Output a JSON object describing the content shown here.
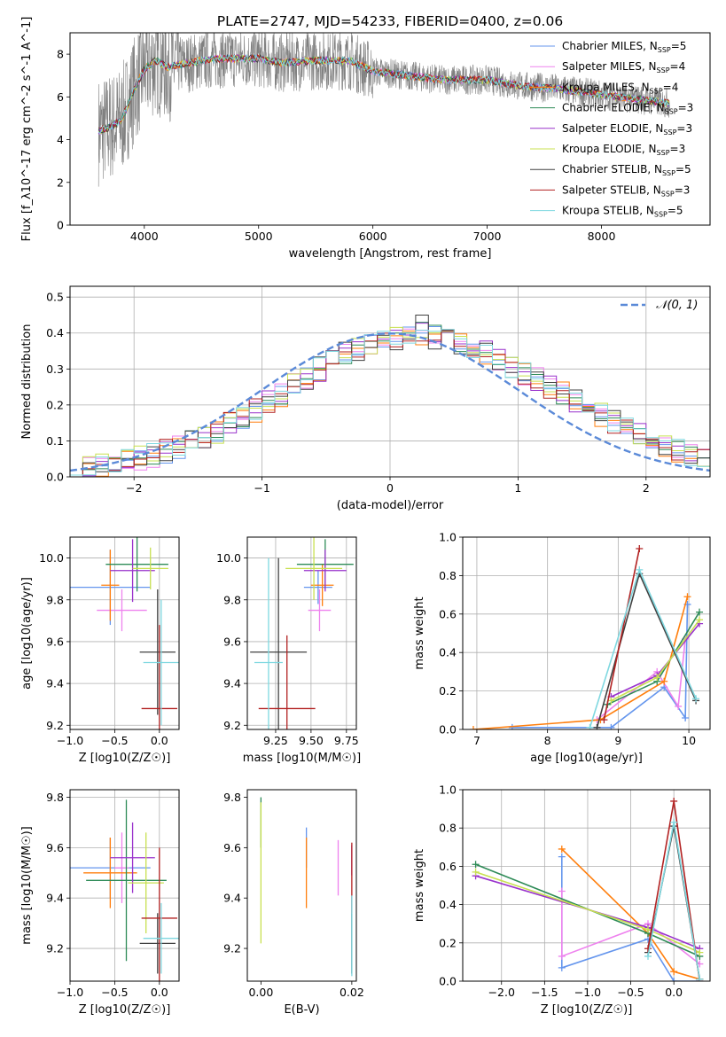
{
  "figure": {
    "title": "PLATE=2747, MJD=54233, FIBERID=0400, z=0.06"
  },
  "legend_spectrum": [
    {
      "label": "Chabrier MILES, N",
      "sub": "SSP",
      "tail": "=5",
      "color": "#6495ed"
    },
    {
      "label": "Salpeter MILES, N",
      "sub": "SSP",
      "tail": "=4",
      "color": "#ee82ee"
    },
    {
      "label": "Kroupa MILES, N",
      "sub": "SSP",
      "tail": "=4",
      "color": "#ff7f0e"
    },
    {
      "label": "Chabrier ELODIE, N",
      "sub": "SSP",
      "tail": "=3",
      "color": "#2e8b57"
    },
    {
      "label": "Salpeter ELODIE, N",
      "sub": "SSP",
      "tail": "=3",
      "color": "#9932cc"
    },
    {
      "label": "Kroupa ELODIE, N",
      "sub": "SSP",
      "tail": "=3",
      "color": "#c8e050"
    },
    {
      "label": "Chabrier STELIB, N",
      "sub": "SSP",
      "tail": "=5",
      "color": "#404040"
    },
    {
      "label": "Salpeter STELIB, N",
      "sub": "SSP",
      "tail": "=3",
      "color": "#b22222"
    },
    {
      "label": "Kroupa STELIB, N",
      "sub": "SSP",
      "tail": "=5",
      "color": "#7fd8e0"
    }
  ],
  "chart_data": [
    {
      "id": "spectrum",
      "type": "line",
      "xlabel": "wavelength [Angstrom, rest frame]",
      "ylabel": "Flux [f_λ10^-17 erg cm^-2 s^-1 A^-1]",
      "xlim": [
        3350,
        8950
      ],
      "ylim": [
        0,
        9
      ],
      "xticks": [
        4000,
        5000,
        6000,
        7000,
        8000
      ],
      "yticks": [
        0,
        2,
        4,
        6,
        8
      ],
      "grid": false,
      "legend_position": "right",
      "data_color": "#808080",
      "data_range": [
        3600,
        8600
      ],
      "model_shape": [
        [
          3600,
          4.4
        ],
        [
          3700,
          4.6
        ],
        [
          3800,
          4.9
        ],
        [
          3900,
          6.2
        ],
        [
          4000,
          7.3
        ],
        [
          4100,
          7.7
        ],
        [
          4200,
          7.4
        ],
        [
          4300,
          7.5
        ],
        [
          4500,
          7.7
        ],
        [
          4700,
          7.8
        ],
        [
          5000,
          7.8
        ],
        [
          5200,
          7.6
        ],
        [
          5500,
          7.7
        ],
        [
          5800,
          7.7
        ],
        [
          6000,
          7.2
        ],
        [
          6300,
          7.0
        ],
        [
          6600,
          6.8
        ],
        [
          7000,
          6.8
        ],
        [
          7300,
          6.5
        ],
        [
          7600,
          6.4
        ],
        [
          8000,
          6.1
        ],
        [
          8300,
          5.9
        ],
        [
          8600,
          5.7
        ]
      ]
    },
    {
      "id": "residual-distribution",
      "type": "line",
      "xlabel": "(data-model)/error",
      "ylabel": "Normed distribution",
      "xlim": [
        -2.5,
        2.5
      ],
      "ylim": [
        0,
        0.53
      ],
      "xticks": [
        -2,
        -1,
        0,
        1,
        2
      ],
      "yticks": [
        0.0,
        0.1,
        0.2,
        0.3,
        0.4,
        0.5
      ],
      "grid": true,
      "legend_label": "𝒩(0, 1)",
      "legend_position": "top-right",
      "normal_color": "#5b8ad8",
      "bin_width": 0.1,
      "series_base": [
        0.028,
        0.03,
        0.036,
        0.04,
        0.045,
        0.052,
        0.06,
        0.07,
        0.082,
        0.095,
        0.11,
        0.127,
        0.145,
        0.165,
        0.185,
        0.208,
        0.23,
        0.253,
        0.276,
        0.3,
        0.32,
        0.34,
        0.356,
        0.37,
        0.38,
        0.388,
        0.392,
        0.393,
        0.39,
        0.385,
        0.375,
        0.36,
        0.345,
        0.327,
        0.31,
        0.29,
        0.27,
        0.25,
        0.23,
        0.21,
        0.19,
        0.17,
        0.15,
        0.131,
        0.114,
        0.098,
        0.084,
        0.072,
        0.061,
        0.051
      ],
      "series_peaks": [
        0.32,
        0.33,
        0.34,
        0.35,
        0.37,
        0.41,
        0.37,
        0.39,
        0.38,
        0.4,
        0.4,
        0.39,
        0.36,
        0.34,
        0.35,
        0.38,
        0.45,
        0.36,
        0.34,
        0.33,
        0.31,
        0.32,
        0.36,
        0.33,
        0.31,
        0.3,
        0.29
      ]
    },
    {
      "id": "age-vs-z",
      "type": "scatter",
      "xlabel": "Z [log10(Z/Z☉)]",
      "ylabel": "age  [log10(age/yr)]",
      "xlim": [
        -1.0,
        0.22
      ],
      "ylim": [
        9.18,
        10.1
      ],
      "xticks": [
        -1.0,
        -0.5,
        0.0
      ],
      "yticks": [
        9.2,
        9.4,
        9.6,
        9.8,
        10.0
      ],
      "grid": true,
      "points": [
        {
          "series": 0,
          "x": -0.55,
          "y": 9.86,
          "xerr": 0.45,
          "yerr": 0.18
        },
        {
          "series": 1,
          "x": -0.42,
          "y": 9.75,
          "xerr": 0.28,
          "yerr": 0.1
        },
        {
          "series": 2,
          "x": -0.55,
          "y": 9.87,
          "xerr": 0.1,
          "yerr": 0.17
        },
        {
          "series": 3,
          "x": -0.25,
          "y": 9.97,
          "xerr": 0.35,
          "yerr": 0.13
        },
        {
          "series": 4,
          "x": -0.3,
          "y": 9.94,
          "xerr": 0.25,
          "yerr": 0.15
        },
        {
          "series": 5,
          "x": -0.1,
          "y": 9.95,
          "xerr": 0.2,
          "yerr": 0.1
        },
        {
          "series": 6,
          "x": -0.02,
          "y": 9.55,
          "xerr": 0.2,
          "yerr": 0.3
        },
        {
          "series": 7,
          "x": 0.0,
          "y": 9.28,
          "xerr": 0.2,
          "yerr": 0.4
        },
        {
          "series": 8,
          "x": 0.02,
          "y": 9.5,
          "xerr": 0.2,
          "yerr": 0.3
        }
      ]
    },
    {
      "id": "age-vs-mass",
      "type": "scatter",
      "xlabel": "mass [log10(M/M☉)]",
      "ylabel": "",
      "xlim": [
        9.05,
        9.82
      ],
      "ylim": [
        9.18,
        10.1
      ],
      "xticks": [
        9.25,
        9.5,
        9.75
      ],
      "yticks": [
        9.2,
        9.4,
        9.6,
        9.8,
        10.0
      ],
      "grid": true,
      "points": [
        {
          "series": 0,
          "x": 9.55,
          "y": 9.86,
          "xerr": 0.1,
          "yerr": 0.08
        },
        {
          "series": 1,
          "x": 9.56,
          "y": 9.75,
          "xerr": 0.08,
          "yerr": 0.1
        },
        {
          "series": 2,
          "x": 9.58,
          "y": 9.87,
          "xerr": 0.08,
          "yerr": 0.1
        },
        {
          "series": 3,
          "x": 9.6,
          "y": 9.97,
          "xerr": 0.2,
          "yerr": 0.12
        },
        {
          "series": 4,
          "x": 9.6,
          "y": 9.94,
          "xerr": 0.15,
          "yerr": 0.1
        },
        {
          "series": 5,
          "x": 9.52,
          "y": 9.95,
          "xerr": 0.2,
          "yerr": 0.15
        },
        {
          "series": 6,
          "x": 9.27,
          "y": 9.55,
          "xerr": 0.2,
          "yerr": 0.45
        },
        {
          "series": 7,
          "x": 9.33,
          "y": 9.28,
          "xerr": 0.2,
          "yerr": 0.35
        },
        {
          "series": 8,
          "x": 9.2,
          "y": 9.5,
          "xerr": 0.1,
          "yerr": 0.5
        }
      ]
    },
    {
      "id": "mass-weight-vs-age",
      "type": "line",
      "xlabel": "age  [log10(age/yr)]",
      "ylabel": "mass weight",
      "xlim": [
        6.8,
        10.3
      ],
      "ylim": [
        0,
        1.0
      ],
      "xticks": [
        7,
        8,
        9,
        10
      ],
      "yticks": [
        0.0,
        0.2,
        0.4,
        0.6,
        0.8,
        1.0
      ],
      "grid": true,
      "series": [
        {
          "x": [
            7.5,
            8.9,
            9.65,
            9.95,
            9.98
          ],
          "y": [
            0.01,
            0.01,
            0.22,
            0.06,
            0.65
          ]
        },
        {
          "x": [
            8.7,
            9.55,
            9.85,
            9.95
          ],
          "y": [
            0.05,
            0.3,
            0.12,
            0.47
          ]
        },
        {
          "x": [
            6.95,
            8.75,
            9.65,
            9.98
          ],
          "y": [
            0.0,
            0.05,
            0.25,
            0.69
          ]
        },
        {
          "x": [
            8.85,
            9.55,
            10.15
          ],
          "y": [
            0.13,
            0.25,
            0.61
          ]
        },
        {
          "x": [
            8.9,
            9.55,
            10.15
          ],
          "y": [
            0.17,
            0.28,
            0.55
          ]
        },
        {
          "x": [
            8.9,
            9.55,
            10.15
          ],
          "y": [
            0.15,
            0.27,
            0.57
          ]
        },
        {
          "x": [
            8.7,
            9.3,
            10.1
          ],
          "y": [
            0.01,
            0.81,
            0.15
          ]
        },
        {
          "x": [
            8.8,
            9.3
          ],
          "y": [
            0.05,
            0.94
          ]
        },
        {
          "x": [
            8.6,
            9.3,
            10.1
          ],
          "y": [
            0.01,
            0.83,
            0.16
          ]
        }
      ]
    },
    {
      "id": "mass-vs-z",
      "type": "scatter",
      "xlabel": "Z [log10(Z/Z☉)]",
      "ylabel": "mass [log10(M/M☉)]",
      "xlim": [
        -1.0,
        0.22
      ],
      "ylim": [
        9.07,
        9.83
      ],
      "xticks": [
        -1.0,
        -0.5,
        0.0
      ],
      "yticks": [
        9.2,
        9.4,
        9.6,
        9.8
      ],
      "grid": true,
      "points": [
        {
          "series": 0,
          "x": -0.55,
          "y": 9.52,
          "xerr": 0.45,
          "yerr": 0.12
        },
        {
          "series": 1,
          "x": -0.42,
          "y": 9.52,
          "xerr": 0.08,
          "yerr": 0.14
        },
        {
          "series": 2,
          "x": -0.55,
          "y": 9.5,
          "xerr": 0.3,
          "yerr": 0.14
        },
        {
          "series": 3,
          "x": -0.37,
          "y": 9.47,
          "xerr": 0.45,
          "yerr": 0.32
        },
        {
          "series": 4,
          "x": -0.3,
          "y": 9.56,
          "xerr": 0.25,
          "yerr": 0.14
        },
        {
          "series": 5,
          "x": -0.15,
          "y": 9.46,
          "xerr": 0.2,
          "yerr": 0.2
        },
        {
          "series": 6,
          "x": -0.02,
          "y": 9.22,
          "xerr": 0.2,
          "yerr": 0.12
        },
        {
          "series": 7,
          "x": 0.0,
          "y": 9.32,
          "xerr": 0.2,
          "yerr": 0.28
        },
        {
          "series": 8,
          "x": 0.02,
          "y": 9.24,
          "xerr": 0.2,
          "yerr": 0.14
        }
      ]
    },
    {
      "id": "mass-vs-ebv",
      "type": "scatter",
      "xlabel": "E(B-V)",
      "ylabel": "",
      "xlim": [
        -0.003,
        0.021
      ],
      "ylim": [
        9.07,
        9.83
      ],
      "xticks": [
        0.0,
        0.02
      ],
      "yticks": [
        9.2,
        9.4,
        9.6,
        9.8
      ],
      "grid": false,
      "points": [
        {
          "series": 0,
          "x": 0.01,
          "y": 9.6,
          "xerr": 0,
          "yerr": 0.08
        },
        {
          "series": 1,
          "x": 0.017,
          "y": 9.52,
          "xerr": 0,
          "yerr": 0.11
        },
        {
          "series": 2,
          "x": 0.01,
          "y": 9.5,
          "xerr": 0,
          "yerr": 0.14
        },
        {
          "series": 3,
          "x": 0.0,
          "y": 9.7,
          "xerr": 0,
          "yerr": 0.1
        },
        {
          "series": 4,
          "x": 0.02,
          "y": 9.55,
          "xerr": 0,
          "yerr": 0.06
        },
        {
          "series": 5,
          "x": 0.0,
          "y": 9.5,
          "xerr": 0,
          "yerr": 0.28
        },
        {
          "series": 6,
          "x": 0.02,
          "y": 9.22,
          "xerr": 0,
          "yerr": 0.12
        },
        {
          "series": 7,
          "x": 0.02,
          "y": 9.48,
          "xerr": 0,
          "yerr": 0.14
        },
        {
          "series": 8,
          "x": 0.02,
          "y": 9.25,
          "xerr": 0,
          "yerr": 0.16
        }
      ]
    },
    {
      "id": "mass-weight-vs-z",
      "type": "line",
      "xlabel": "Z [log10(Z/Z☉)]",
      "ylabel": "mass weight",
      "xlim": [
        -2.45,
        0.42
      ],
      "ylim": [
        0,
        1.0
      ],
      "xticks": [
        -2.0,
        -1.5,
        -1.0,
        -0.5,
        0.0
      ],
      "yticks": [
        0.0,
        0.2,
        0.4,
        0.6,
        0.8,
        1.0
      ],
      "grid": true,
      "series": [
        {
          "x": [
            -1.3,
            -1.3,
            -0.3,
            0.0,
            0.3
          ],
          "y": [
            0.65,
            0.07,
            0.22,
            0.0,
            0.0
          ]
        },
        {
          "x": [
            -1.3,
            -1.3,
            -0.3,
            0.3
          ],
          "y": [
            0.47,
            0.13,
            0.3,
            0.09
          ]
        },
        {
          "x": [
            -1.3,
            -0.3,
            0.0,
            0.3
          ],
          "y": [
            0.69,
            0.25,
            0.05,
            0.01
          ]
        },
        {
          "x": [
            -2.3,
            -0.3,
            0.3
          ],
          "y": [
            0.61,
            0.25,
            0.13
          ]
        },
        {
          "x": [
            -2.3,
            -0.3,
            0.3
          ],
          "y": [
            0.55,
            0.28,
            0.17
          ]
        },
        {
          "x": [
            -2.3,
            -0.3,
            0.3
          ],
          "y": [
            0.57,
            0.27,
            0.15
          ]
        },
        {
          "x": [
            -0.3,
            0.0,
            0.3
          ],
          "y": [
            0.15,
            0.81,
            0.01
          ]
        },
        {
          "x": [
            -0.3,
            0.0,
            0.3
          ],
          "y": [
            0.17,
            0.94,
            0.0
          ]
        },
        {
          "x": [
            -0.3,
            0.0,
            0.3
          ],
          "y": [
            0.13,
            0.83,
            0.01
          ]
        }
      ]
    }
  ]
}
